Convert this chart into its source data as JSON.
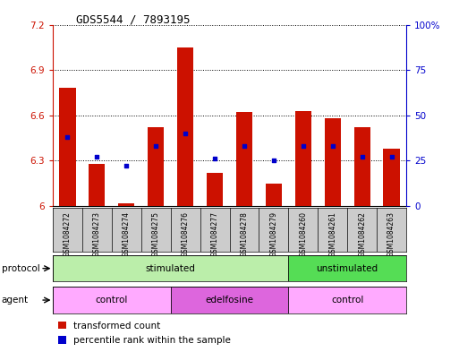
{
  "title": "GDS5544 / 7893195",
  "samples": [
    "GSM1084272",
    "GSM1084273",
    "GSM1084274",
    "GSM1084275",
    "GSM1084276",
    "GSM1084277",
    "GSM1084278",
    "GSM1084279",
    "GSM1084260",
    "GSM1084261",
    "GSM1084262",
    "GSM1084263"
  ],
  "transformed_counts": [
    6.78,
    6.28,
    6.02,
    6.52,
    7.05,
    6.22,
    6.62,
    6.15,
    6.63,
    6.58,
    6.52,
    6.38
  ],
  "percentile_ranks": [
    38,
    27,
    22,
    33,
    40,
    26,
    33,
    25,
    33,
    33,
    27,
    27
  ],
  "y_min": 6.0,
  "y_max": 7.2,
  "y_ticks": [
    6.0,
    6.3,
    6.6,
    6.9,
    7.2
  ],
  "y_tick_labels": [
    "6",
    "6.3",
    "6.6",
    "6.9",
    "7.2"
  ],
  "right_y_ticks": [
    0,
    25,
    50,
    75,
    100
  ],
  "right_y_tick_labels": [
    "0",
    "25",
    "50",
    "75",
    "100%"
  ],
  "bar_color": "#cc1100",
  "dot_color": "#0000cc",
  "bar_width": 0.55,
  "protocol_labels": [
    "stimulated",
    "unstimulated"
  ],
  "protocol_ranges": [
    [
      0,
      8
    ],
    [
      8,
      12
    ]
  ],
  "protocol_colors": [
    "#bbeeaa",
    "#55dd55"
  ],
  "agent_labels": [
    "control",
    "edelfosine",
    "control"
  ],
  "agent_ranges": [
    [
      0,
      4
    ],
    [
      4,
      8
    ],
    [
      8,
      12
    ]
  ],
  "agent_colors": [
    "#ffaaff",
    "#dd66dd",
    "#ffaaff"
  ],
  "left_axis_color": "#cc1100",
  "right_axis_color": "#0000cc",
  "bg_color": "#ffffff",
  "plot_bg_color": "#ffffff",
  "grid_color": "#000000",
  "sample_bg_color": "#cccccc"
}
